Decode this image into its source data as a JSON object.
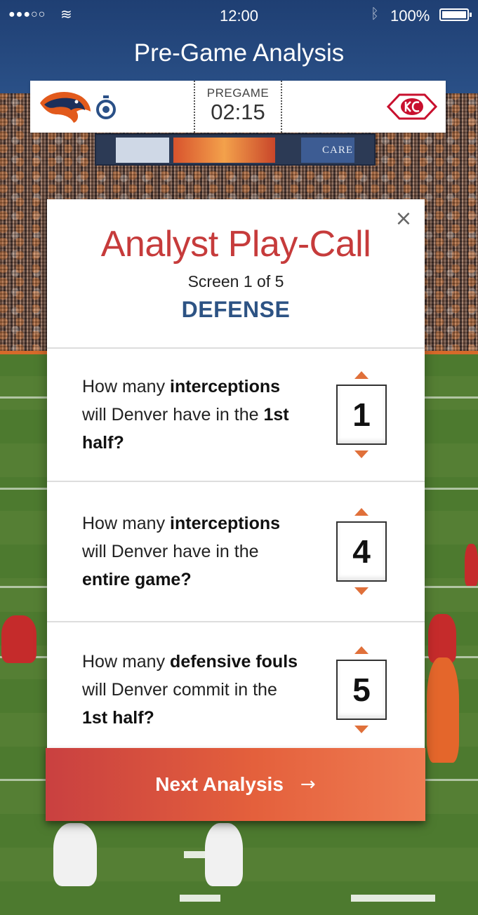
{
  "status_bar": {
    "signal": "●●●○○",
    "time": "12:00",
    "battery": "100%"
  },
  "header": {
    "title": "Pre-Game Analysis"
  },
  "scoreboard": {
    "home_team_icon": "broncos-logo-icon",
    "away_team_icon": "chiefs-logo-icon",
    "status_label": "PREGAME",
    "clock": "02:15"
  },
  "background": {
    "jumbotron_text": "CARE"
  },
  "modal": {
    "title": "Analyst Play-Call",
    "subtitle": "Screen 1 of 5",
    "section": "DEFENSE",
    "close_icon": "close-icon",
    "questions": [
      {
        "pre": "How many ",
        "bold1": "interceptions",
        "mid": " will Denver have in the ",
        "bold2": "1st half?",
        "value": "1"
      },
      {
        "pre": "How many ",
        "bold1": "interceptions",
        "mid": " will Denver have in the ",
        "bold2": "entire game?",
        "value": "4"
      },
      {
        "pre": "How many ",
        "bold1": "defensive fouls",
        "mid": " will Denver commit in the ",
        "bold2": "1st half?",
        "value": "5"
      }
    ]
  },
  "next_button": {
    "label": "Next Analysis",
    "arrow": "→"
  },
  "colors": {
    "header_bg": "#1f3f73",
    "title_red": "#c63b3b",
    "section_blue": "#2d5384",
    "arrow_orange": "#e0703a",
    "button_start": "#c94040",
    "button_end": "#ef7c52"
  }
}
